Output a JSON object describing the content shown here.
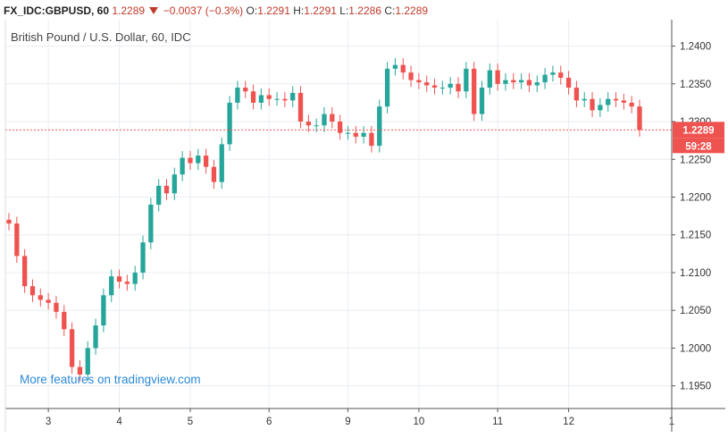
{
  "header": {
    "symbol": "FX_IDC:GBPUSD, 60",
    "last": "1.2289",
    "change": "−0.0037 (−0.3%)",
    "o_label": "O:",
    "o_value": "1.2291",
    "h_label": "H:",
    "h_value": "1.2291",
    "l_label": "L:",
    "l_value": "1.2286",
    "c_label": "C:",
    "c_value": "1.2289"
  },
  "subtitle": "British Pound / U.S. Dollar, 60, IDC",
  "watermark": "More features on tradingview.com",
  "price_label": "1.2289",
  "countdown_label": "59:28",
  "colors": {
    "up": "#26a69a",
    "down": "#ef5350",
    "grid": "#e9edf2",
    "axis": "#555555",
    "label_bg": "#ef5350"
  },
  "chart_data": {
    "type": "candlestick",
    "y_ticks": [
      "1.2400",
      "1.2350",
      "1.2300",
      "1.2250",
      "1.2200",
      "1.2150",
      "1.2100",
      "1.2050",
      "1.2000",
      "1.1950"
    ],
    "ylim": [
      1.192,
      1.2435
    ],
    "x_ticks": [
      "3",
      "4",
      "5",
      "6",
      "9",
      "10",
      "11",
      "12",
      "1"
    ],
    "last_price": 1.2289,
    "series": [
      {
        "date": "2",
        "close": 1.2165
      },
      {
        "date": "2",
        "close": 1.2122
      },
      {
        "date": "2",
        "close": 1.2082
      },
      {
        "date": "2",
        "close": 1.207
      },
      {
        "date": "2",
        "close": 1.2064
      },
      {
        "date": "3",
        "close": 1.206
      },
      {
        "date": "3",
        "close": 1.2048
      },
      {
        "date": "3",
        "close": 1.2025
      },
      {
        "date": "3",
        "close": 1.1975
      },
      {
        "date": "3",
        "close": 1.1965
      },
      {
        "date": "3",
        "close": 1.2
      },
      {
        "date": "3",
        "close": 1.203
      },
      {
        "date": "3",
        "close": 1.207
      },
      {
        "date": "3",
        "close": 1.2095
      },
      {
        "date": "4",
        "close": 1.2088
      },
      {
        "date": "4",
        "close": 1.2085
      },
      {
        "date": "4",
        "close": 1.21
      },
      {
        "date": "4",
        "close": 1.214
      },
      {
        "date": "4",
        "close": 1.219
      },
      {
        "date": "4",
        "close": 1.2215
      },
      {
        "date": "4",
        "close": 1.2205
      },
      {
        "date": "4",
        "close": 1.223
      },
      {
        "date": "4",
        "close": 1.2252
      },
      {
        "date": "5",
        "close": 1.2245
      },
      {
        "date": "5",
        "close": 1.2255
      },
      {
        "date": "5",
        "close": 1.224
      },
      {
        "date": "5",
        "close": 1.222
      },
      {
        "date": "5",
        "close": 1.227
      },
      {
        "date": "5",
        "close": 1.2325
      },
      {
        "date": "5",
        "close": 1.2345
      },
      {
        "date": "5",
        "close": 1.234
      },
      {
        "date": "5",
        "close": 1.2325
      },
      {
        "date": "5",
        "close": 1.2335
      },
      {
        "date": "6",
        "close": 1.233
      },
      {
        "date": "6",
        "close": 1.233
      },
      {
        "date": "6",
        "close": 1.2328
      },
      {
        "date": "6",
        "close": 1.2338
      },
      {
        "date": "6",
        "close": 1.23
      },
      {
        "date": "6",
        "close": 1.2295
      },
      {
        "date": "6",
        "close": 1.2295
      },
      {
        "date": "6",
        "close": 1.231
      },
      {
        "date": "6",
        "close": 1.23
      },
      {
        "date": "6",
        "close": 1.2285
      },
      {
        "date": "9",
        "close": 1.2285
      },
      {
        "date": "9",
        "close": 1.228
      },
      {
        "date": "9",
        "close": 1.2285
      },
      {
        "date": "9",
        "close": 1.2268
      },
      {
        "date": "9",
        "close": 1.232
      },
      {
        "date": "9",
        "close": 1.237
      },
      {
        "date": "9",
        "close": 1.2375
      },
      {
        "date": "9",
        "close": 1.2365
      },
      {
        "date": "9",
        "close": 1.2355
      },
      {
        "date": "10",
        "close": 1.2352
      },
      {
        "date": "10",
        "close": 1.2348
      },
      {
        "date": "10",
        "close": 1.2345
      },
      {
        "date": "10",
        "close": 1.2345
      },
      {
        "date": "10",
        "close": 1.235
      },
      {
        "date": "10",
        "close": 1.234
      },
      {
        "date": "10",
        "close": 1.237
      },
      {
        "date": "10",
        "close": 1.231
      },
      {
        "date": "10",
        "close": 1.2345
      },
      {
        "date": "10",
        "close": 1.2368
      },
      {
        "date": "11",
        "close": 1.235
      },
      {
        "date": "11",
        "close": 1.2355
      },
      {
        "date": "11",
        "close": 1.2352
      },
      {
        "date": "11",
        "close": 1.2355
      },
      {
        "date": "11",
        "close": 1.2348
      },
      {
        "date": "11",
        "close": 1.2352
      },
      {
        "date": "11",
        "close": 1.2362
      },
      {
        "date": "11",
        "close": 1.2365
      },
      {
        "date": "11",
        "close": 1.2358
      },
      {
        "date": "12",
        "close": 1.2345
      },
      {
        "date": "12",
        "close": 1.2328
      },
      {
        "date": "12",
        "close": 1.233
      },
      {
        "date": "12",
        "close": 1.2315
      },
      {
        "date": "12",
        "close": 1.2322
      },
      {
        "date": "12",
        "close": 1.233
      },
      {
        "date": "12",
        "close": 1.2328
      },
      {
        "date": "12",
        "close": 1.2325
      },
      {
        "date": "12",
        "close": 1.232
      },
      {
        "date": "12",
        "close": 1.2289
      }
    ]
  }
}
